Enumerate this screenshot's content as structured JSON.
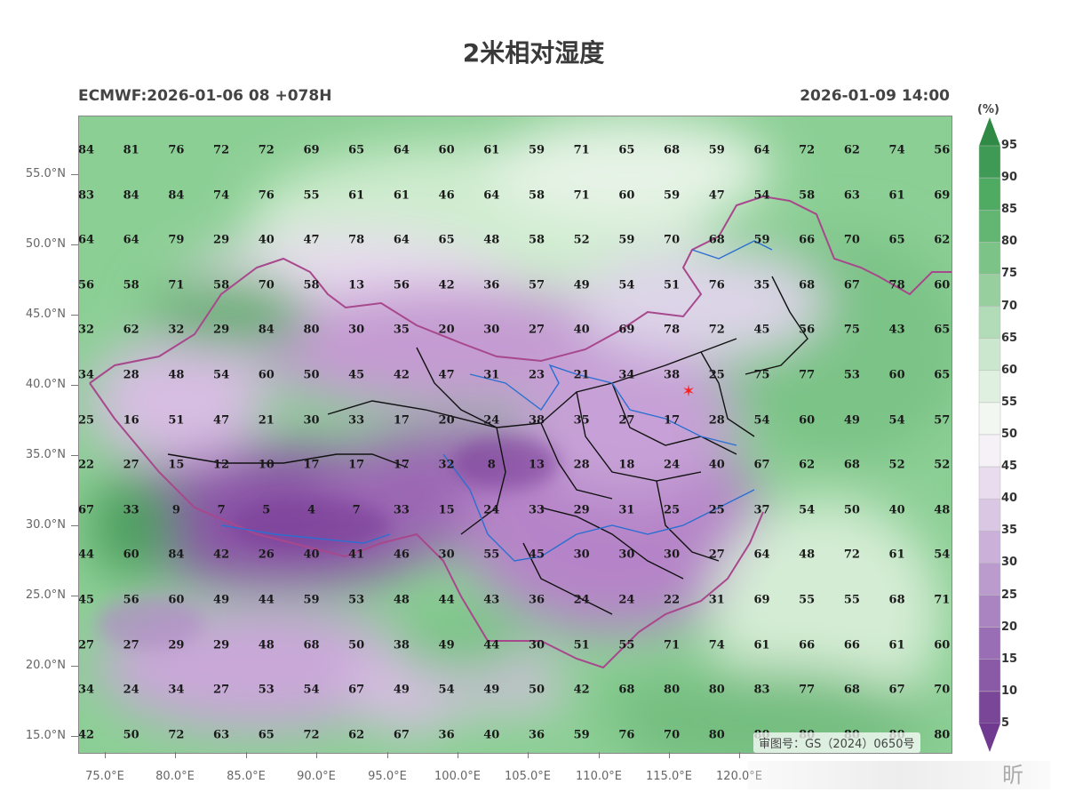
{
  "title": "2米相对湿度",
  "subtitle_left": "ECMWF:2026-01-06 08 +078H",
  "subtitle_right": "2026-01-09 14:00",
  "colorbar": {
    "unit": "(%)",
    "labels": [
      "95",
      "90",
      "85",
      "80",
      "75",
      "70",
      "65",
      "60",
      "55",
      "50",
      "45",
      "40",
      "35",
      "30",
      "25",
      "20",
      "15",
      "10",
      "5"
    ]
  },
  "y_ticks": [
    "55.0°N",
    "50.0°N",
    "45.0°N",
    "40.0°N",
    "35.0°N",
    "30.0°N",
    "25.0°N",
    "20.0°N",
    "15.0°N"
  ],
  "x_ticks": [
    "75.0°E",
    "80.0°E",
    "85.0°E",
    "90.0°E",
    "95.0°E",
    "100.0°E",
    "105.0°E",
    "110.0°E",
    "115.0°E",
    "120.0°E"
  ],
  "watermark": "审图号：GS（2024）0650号",
  "overlay_text": "昕",
  "grid_values": [
    [
      "84",
      "81",
      "76",
      "72",
      "72",
      "69",
      "65",
      "64",
      "60",
      "61",
      "59",
      "71",
      "65",
      "68",
      "59",
      "64",
      "72",
      "62",
      "74",
      "56"
    ],
    [
      "83",
      "84",
      "84",
      "74",
      "76",
      "55",
      "61",
      "61",
      "46",
      "64",
      "58",
      "71",
      "60",
      "59",
      "47",
      "54",
      "58",
      "63",
      "61",
      "69"
    ],
    [
      "64",
      "64",
      "79",
      "29",
      "40",
      "47",
      "78",
      "64",
      "65",
      "48",
      "58",
      "52",
      "59",
      "70",
      "68",
      "59",
      "66",
      "70",
      "65",
      "62"
    ],
    [
      "56",
      "58",
      "71",
      "58",
      "70",
      "58",
      "13",
      "56",
      "42",
      "36",
      "57",
      "49",
      "54",
      "51",
      "76",
      "35",
      "68",
      "67",
      "78",
      "60"
    ],
    [
      "32",
      "62",
      "32",
      "29",
      "84",
      "80",
      "30",
      "35",
      "20",
      "30",
      "27",
      "40",
      "69",
      "78",
      "72",
      "45",
      "56",
      "75",
      "43",
      "65"
    ],
    [
      "34",
      "28",
      "48",
      "54",
      "60",
      "50",
      "45",
      "42",
      "47",
      "31",
      "23",
      "21",
      "34",
      "38",
      "25",
      "75",
      "77",
      "53",
      "60",
      "65"
    ],
    [
      "25",
      "16",
      "51",
      "47",
      "21",
      "30",
      "33",
      "17",
      "20",
      "24",
      "38",
      "35",
      "27",
      "17",
      "28",
      "54",
      "60",
      "49",
      "54",
      "57"
    ],
    [
      "22",
      "27",
      "15",
      "12",
      "10",
      "17",
      "17",
      "17",
      "32",
      "8",
      "13",
      "28",
      "18",
      "24",
      "40",
      "67",
      "62",
      "68",
      "52",
      "52"
    ],
    [
      "67",
      "33",
      "9",
      "7",
      "5",
      "4",
      "7",
      "33",
      "15",
      "24",
      "33",
      "29",
      "31",
      "25",
      "25",
      "37",
      "54",
      "50",
      "40",
      "48"
    ],
    [
      "44",
      "60",
      "84",
      "42",
      "26",
      "40",
      "41",
      "46",
      "30",
      "55",
      "45",
      "30",
      "30",
      "30",
      "27",
      "64",
      "48",
      "72",
      "61",
      "54"
    ],
    [
      "45",
      "56",
      "60",
      "49",
      "44",
      "59",
      "53",
      "48",
      "44",
      "43",
      "36",
      "24",
      "24",
      "22",
      "31",
      "69",
      "55",
      "55",
      "68",
      "71"
    ],
    [
      "27",
      "27",
      "29",
      "29",
      "48",
      "68",
      "50",
      "38",
      "49",
      "44",
      "30",
      "51",
      "55",
      "71",
      "74",
      "61",
      "66",
      "66",
      "61",
      "60"
    ],
    [
      "34",
      "24",
      "34",
      "27",
      "53",
      "54",
      "67",
      "49",
      "54",
      "49",
      "50",
      "42",
      "68",
      "80",
      "80",
      "83",
      "77",
      "68",
      "67",
      "70"
    ],
    [
      "42",
      "50",
      "72",
      "63",
      "65",
      "72",
      "62",
      "67",
      "36",
      "40",
      "36",
      "59",
      "76",
      "70",
      "80",
      "80",
      "80",
      "80",
      "80",
      "80"
    ]
  ]
}
